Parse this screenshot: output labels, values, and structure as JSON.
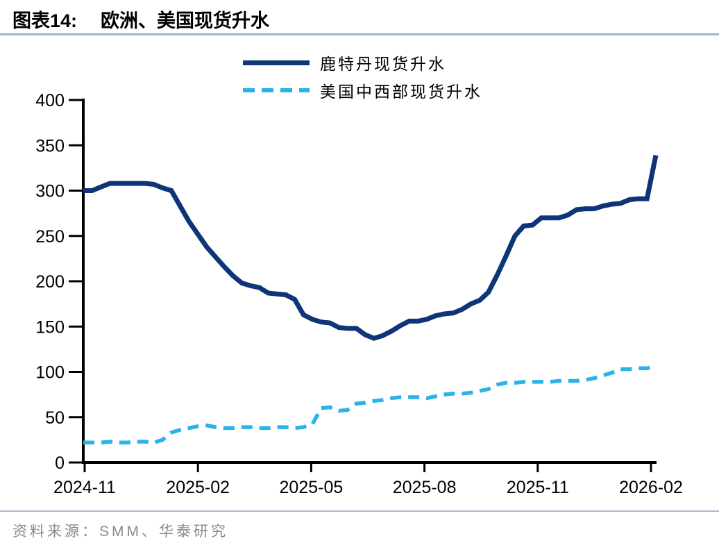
{
  "title": {
    "label": "图表14:",
    "text": "欧洲、美国现货升水"
  },
  "legend": [
    {
      "name": "鹿特丹现货升水",
      "color": "#0d3577",
      "style": "solid"
    },
    {
      "name": "美国中西部现货升水",
      "color": "#29b3e8",
      "style": "dashed"
    }
  ],
  "source": {
    "text": "资料来源：SMM、华泰研究"
  },
  "chart_data": {
    "type": "line",
    "title": "欧洲、美国现货升水",
    "xlabel": "",
    "ylabel": "",
    "ylim": [
      0,
      400
    ],
    "y_ticks": [
      0,
      50,
      100,
      150,
      200,
      250,
      300,
      350,
      400
    ],
    "x_tick_labels": [
      "2024-11",
      "2025-02",
      "2025-05",
      "2025-08",
      "2025-11",
      "2026-02"
    ],
    "x_unit": "weekly",
    "grid": false,
    "legend_position": "top",
    "axis_color": "#000000",
    "series": [
      {
        "name": "鹿特丹现货升水",
        "color": "#0d3577",
        "dash": false,
        "values": [
          300,
          300,
          304,
          308,
          308,
          308,
          308,
          308,
          307,
          303,
          300,
          283,
          266,
          252,
          238,
          227,
          216,
          206,
          198,
          195,
          193,
          187,
          186,
          185,
          180,
          163,
          158,
          155,
          154,
          149,
          148,
          148,
          141,
          137,
          140,
          145,
          151,
          156,
          156,
          158,
          162,
          164,
          165,
          169,
          175,
          179,
          188,
          207,
          228,
          250,
          261,
          262,
          270,
          270,
          270,
          273,
          279,
          280,
          280,
          283,
          285,
          286,
          290,
          291,
          291,
          339
        ]
      },
      {
        "name": "美国中西部现货升水",
        "color": "#29b3e8",
        "dash": true,
        "values": [
          22,
          22,
          22,
          23,
          22,
          22,
          23,
          23,
          22,
          25,
          33,
          36,
          38,
          40,
          41,
          39,
          38,
          38,
          39,
          39,
          38,
          38,
          39,
          39,
          38,
          39,
          42,
          60,
          61,
          57,
          58,
          65,
          66,
          68,
          69,
          71,
          72,
          72,
          72,
          71,
          73,
          75,
          76,
          76,
          77,
          79,
          81,
          86,
          88,
          88,
          89,
          89,
          89,
          89,
          90,
          90,
          90,
          91,
          93,
          96,
          99,
          103,
          103,
          104,
          104,
          106
        ]
      }
    ]
  }
}
